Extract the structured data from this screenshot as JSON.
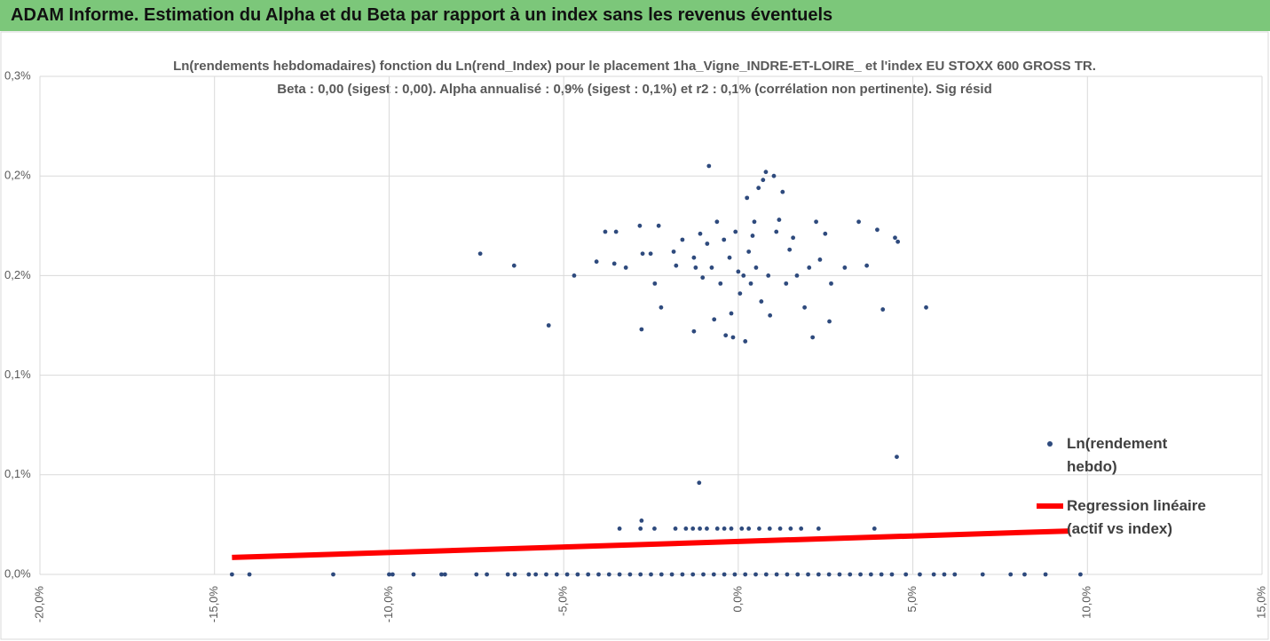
{
  "header": {
    "title": "ADAM Informe. Estimation du Alpha et du Beta par rapport à un index sans les revenus éventuels"
  },
  "chart_data": {
    "type": "scatter",
    "title": "Ln(rendements hebdomadaires) fonction du Ln(rend_Index) pour le placement 1ha_Vigne_INDRE-ET-LOIRE_ et l'index EU STOXX 600 GROSS TR.",
    "subtitle": "Beta : 0,00 (sigest : 0,00). Alpha annualisé : 0,9% (sigest : 0,1%) et r2 : 0,1% (corrélation non pertinente). Sig résid",
    "xlim": [
      -20,
      15
    ],
    "ylim": [
      0,
      0.25
    ],
    "xticks": [
      {
        "value": -20,
        "label": "-20,0%"
      },
      {
        "value": -15,
        "label": "-15,0%"
      },
      {
        "value": -10,
        "label": "-10,0%"
      },
      {
        "value": -5,
        "label": "-5,0%"
      },
      {
        "value": 0,
        "label": "0,0%"
      },
      {
        "value": 5,
        "label": "5,0%"
      },
      {
        "value": 10,
        "label": "10,0%"
      },
      {
        "value": 15,
        "label": "15,0%"
      }
    ],
    "yticks": [
      {
        "value": 0,
        "label": "0,0%"
      },
      {
        "value": 0.05,
        "label": "0,1%"
      },
      {
        "value": 0.1,
        "label": "0,1%"
      },
      {
        "value": 0.15,
        "label": "0,2%"
      },
      {
        "value": 0.2,
        "label": "0,2%"
      },
      {
        "value": 0.25,
        "label": "0,3%"
      }
    ],
    "grid": true,
    "legend": "right",
    "series": [
      {
        "name": "Ln(rendement hebdo)",
        "type": "scatter",
        "color": "#2e4a7d",
        "x": [
          -7.39,
          -6.42,
          -5.43,
          -4.7,
          -4.06,
          -3.81,
          -3.5,
          -3.55,
          -3.22,
          -2.82,
          -2.77,
          -2.74,
          -2.51,
          -2.39,
          -2.28,
          -2.21,
          -1.85,
          -1.78,
          -1.6,
          -1.27,
          -1.22,
          -1.27,
          -1.09,
          -1.02,
          -0.89,
          -0.84,
          -0.76,
          -0.69,
          -0.61,
          -0.51,
          -0.41,
          -0.36,
          -0.25,
          -0.2,
          -0.15,
          -0.08,
          0.0,
          0.05,
          0.15,
          0.2,
          0.25,
          0.3,
          0.36,
          0.41,
          0.46,
          0.51,
          0.58,
          0.66,
          0.71,
          0.79,
          0.86,
          0.91,
          1.02,
          1.09,
          1.17,
          1.27,
          1.37,
          1.47,
          1.57,
          1.68,
          1.9,
          2.03,
          2.13,
          2.23,
          2.34,
          2.49,
          2.66,
          2.61,
          3.05,
          3.45,
          3.68,
          3.98,
          4.14,
          4.49,
          4.57,
          5.38,
          4.54,
          -1.12,
          -3.4,
          -2.8,
          -2.4,
          -1.8,
          -1.5,
          -1.3,
          -1.1,
          -0.9,
          -0.6,
          -0.4,
          -0.2,
          0.1,
          0.3,
          0.6,
          0.9,
          1.2,
          1.5,
          1.8,
          2.3,
          3.9,
          -2.77,
          -14.5,
          -14.0,
          -11.6,
          -10.0,
          -9.9,
          -9.3,
          -8.5,
          -8.4,
          -7.5,
          -7.2,
          -6.6,
          -6.4,
          -6.0,
          -5.8,
          -5.5,
          -5.2,
          -4.9,
          -4.6,
          -4.3,
          -4.0,
          -3.7,
          -3.4,
          -3.1,
          -2.8,
          -2.5,
          -2.2,
          -1.9,
          -1.6,
          -1.3,
          -1.0,
          -0.7,
          -0.4,
          -0.1,
          0.2,
          0.5,
          0.8,
          1.1,
          1.4,
          1.7,
          2.0,
          2.3,
          2.6,
          2.9,
          3.2,
          3.5,
          3.8,
          4.1,
          4.4,
          4.8,
          5.2,
          5.6,
          5.9,
          6.2,
          7.0,
          7.8,
          8.2,
          8.8,
          9.8
        ],
        "y": [
          0.161,
          0.155,
          0.125,
          0.15,
          0.157,
          0.172,
          0.172,
          0.156,
          0.154,
          0.175,
          0.123,
          0.161,
          0.161,
          0.146,
          0.175,
          0.134,
          0.162,
          0.155,
          0.168,
          0.159,
          0.154,
          0.122,
          0.171,
          0.149,
          0.166,
          0.205,
          0.154,
          0.128,
          0.177,
          0.146,
          0.168,
          0.12,
          0.159,
          0.131,
          0.119,
          0.172,
          0.152,
          0.141,
          0.15,
          0.117,
          0.189,
          0.162,
          0.146,
          0.17,
          0.177,
          0.154,
          0.194,
          0.137,
          0.198,
          0.202,
          0.15,
          0.13,
          0.2,
          0.172,
          0.178,
          0.192,
          0.146,
          0.163,
          0.169,
          0.15,
          0.134,
          0.154,
          0.119,
          0.177,
          0.158,
          0.171,
          0.146,
          0.127,
          0.154,
          0.177,
          0.155,
          0.173,
          0.133,
          0.169,
          0.167,
          0.134,
          0.059,
          0.046,
          0.023,
          0.023,
          0.023,
          0.023,
          0.023,
          0.023,
          0.023,
          0.023,
          0.023,
          0.023,
          0.023,
          0.023,
          0.023,
          0.023,
          0.023,
          0.023,
          0.023,
          0.023,
          0.023,
          0.023,
          0.027,
          0,
          0,
          0,
          0,
          0,
          0,
          0,
          0,
          0,
          0,
          0,
          0,
          0,
          0,
          0,
          0,
          0,
          0,
          0,
          0,
          0,
          0,
          0,
          0,
          0,
          0,
          0,
          0,
          0,
          0,
          0,
          0,
          0,
          0,
          0,
          0,
          0,
          0,
          0,
          0,
          0,
          0,
          0,
          0,
          0,
          0,
          0,
          0,
          0,
          0,
          0,
          0,
          0,
          0,
          0,
          0,
          0,
          0
        ]
      },
      {
        "name": "Regression linéaire (actif vs index)",
        "type": "line",
        "color": "#ff0000",
        "x": [
          -14.5,
          9.5
        ],
        "y": [
          0.0085,
          0.0218
        ]
      }
    ]
  }
}
